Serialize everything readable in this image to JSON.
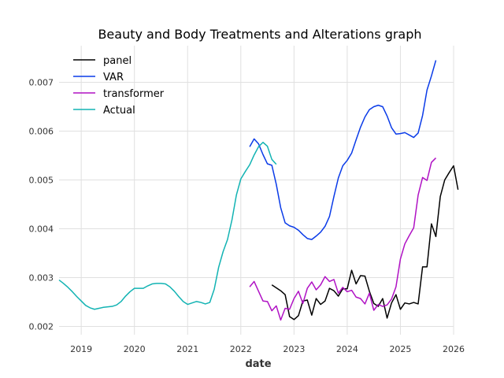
{
  "chart_data": {
    "type": "line",
    "title": "Beauty and Body Treatments and Alterations graph",
    "xlabel": "date",
    "ylabel": "",
    "xlim": [
      "2018-08-01",
      "2026-01-01"
    ],
    "ylim": [
      0.00183,
      0.00775
    ],
    "x_ticks": [
      "2019",
      "2020",
      "2021",
      "2022",
      "2023",
      "2024",
      "2025",
      "2026"
    ],
    "y_ticks": [
      "0.002",
      "0.003",
      "0.004",
      "0.005",
      "0.006",
      "0.007"
    ],
    "grid": true,
    "legend_position": "top-left",
    "series": [
      {
        "name": "panel",
        "color": "#000000",
        "points": [
          [
            "2022-08",
            0.00285
          ],
          [
            "2022-09",
            0.00279
          ],
          [
            "2022-10",
            0.00273
          ],
          [
            "2022-11",
            0.00265
          ],
          [
            "2022-12",
            0.0022
          ],
          [
            "2023-01",
            0.00214
          ],
          [
            "2023-02",
            0.00222
          ],
          [
            "2023-03",
            0.00252
          ],
          [
            "2023-04",
            0.00254
          ],
          [
            "2023-05",
            0.00223
          ],
          [
            "2023-06",
            0.00257
          ],
          [
            "2023-07",
            0.00245
          ],
          [
            "2023-08",
            0.00252
          ],
          [
            "2023-09",
            0.00278
          ],
          [
            "2023-10",
            0.00273
          ],
          [
            "2023-11",
            0.00262
          ],
          [
            "2023-12",
            0.00277
          ],
          [
            "2024-01",
            0.00277
          ],
          [
            "2024-02",
            0.00315
          ],
          [
            "2024-03",
            0.00287
          ],
          [
            "2024-04",
            0.00304
          ],
          [
            "2024-05",
            0.00303
          ],
          [
            "2024-06",
            0.00272
          ],
          [
            "2024-07",
            0.00247
          ],
          [
            "2024-08",
            0.00241
          ],
          [
            "2024-09",
            0.00257
          ],
          [
            "2024-10",
            0.00217
          ],
          [
            "2024-11",
            0.00248
          ],
          [
            "2024-12",
            0.00265
          ],
          [
            "2025-01",
            0.00235
          ],
          [
            "2025-02",
            0.00248
          ],
          [
            "2025-03",
            0.00246
          ],
          [
            "2025-04",
            0.00249
          ],
          [
            "2025-05",
            0.00246
          ],
          [
            "2025-06",
            0.00322
          ],
          [
            "2025-07",
            0.00322
          ],
          [
            "2025-08",
            0.0041
          ],
          [
            "2025-09",
            0.00384
          ],
          [
            "2025-10",
            0.00466
          ],
          [
            "2025-11",
            0.005
          ],
          [
            "2025-12",
            0.00515
          ],
          [
            "2026-01",
            0.00529
          ],
          [
            "2026-02",
            0.0048
          ]
        ]
      },
      {
        "name": "VAR",
        "color": "#0a3be8",
        "points": [
          [
            "2022-03",
            0.00568
          ],
          [
            "2022-04",
            0.00584
          ],
          [
            "2022-05",
            0.00574
          ],
          [
            "2022-06",
            0.00552
          ],
          [
            "2022-07",
            0.00533
          ],
          [
            "2022-08",
            0.0053
          ],
          [
            "2022-09",
            0.00491
          ],
          [
            "2022-10",
            0.00443
          ],
          [
            "2022-11",
            0.00412
          ],
          [
            "2022-12",
            0.00406
          ],
          [
            "2023-01",
            0.00403
          ],
          [
            "2023-02",
            0.00397
          ],
          [
            "2023-03",
            0.00388
          ],
          [
            "2023-04",
            0.0038
          ],
          [
            "2023-05",
            0.00378
          ],
          [
            "2023-06",
            0.00385
          ],
          [
            "2023-07",
            0.00393
          ],
          [
            "2023-08",
            0.00405
          ],
          [
            "2023-09",
            0.00425
          ],
          [
            "2023-10",
            0.00466
          ],
          [
            "2023-11",
            0.00504
          ],
          [
            "2023-12",
            0.00529
          ],
          [
            "2024-01",
            0.0054
          ],
          [
            "2024-02",
            0.00555
          ],
          [
            "2024-03",
            0.00582
          ],
          [
            "2024-04",
            0.00608
          ],
          [
            "2024-05",
            0.00629
          ],
          [
            "2024-06",
            0.00644
          ],
          [
            "2024-07",
            0.0065
          ],
          [
            "2024-08",
            0.00653
          ],
          [
            "2024-09",
            0.0065
          ],
          [
            "2024-10",
            0.00631
          ],
          [
            "2024-11",
            0.00607
          ],
          [
            "2024-12",
            0.00594
          ],
          [
            "2025-01",
            0.00595
          ],
          [
            "2025-02",
            0.00597
          ],
          [
            "2025-03",
            0.00592
          ],
          [
            "2025-04",
            0.00587
          ],
          [
            "2025-05",
            0.00596
          ],
          [
            "2025-06",
            0.00632
          ],
          [
            "2025-07",
            0.00684
          ],
          [
            "2025-08",
            0.00713
          ],
          [
            "2025-09",
            0.00745
          ]
        ]
      },
      {
        "name": "transformer",
        "color": "#b012c4",
        "points": [
          [
            "2022-03",
            0.00281
          ],
          [
            "2022-04",
            0.00292
          ],
          [
            "2022-05",
            0.00272
          ],
          [
            "2022-06",
            0.00252
          ],
          [
            "2022-07",
            0.00251
          ],
          [
            "2022-08",
            0.00232
          ],
          [
            "2022-09",
            0.00242
          ],
          [
            "2022-10",
            0.00213
          ],
          [
            "2022-11",
            0.00237
          ],
          [
            "2022-12",
            0.00235
          ],
          [
            "2023-01",
            0.00257
          ],
          [
            "2023-02",
            0.00272
          ],
          [
            "2023-03",
            0.00247
          ],
          [
            "2023-04",
            0.00278
          ],
          [
            "2023-05",
            0.00291
          ],
          [
            "2023-06",
            0.00275
          ],
          [
            "2023-07",
            0.00285
          ],
          [
            "2023-08",
            0.00302
          ],
          [
            "2023-09",
            0.00292
          ],
          [
            "2023-10",
            0.00296
          ],
          [
            "2023-11",
            0.00268
          ],
          [
            "2023-12",
            0.0028
          ],
          [
            "2024-01",
            0.00271
          ],
          [
            "2024-02",
            0.00274
          ],
          [
            "2024-03",
            0.0026
          ],
          [
            "2024-04",
            0.00257
          ],
          [
            "2024-05",
            0.00246
          ],
          [
            "2024-06",
            0.00268
          ],
          [
            "2024-07",
            0.00233
          ],
          [
            "2024-08",
            0.00245
          ],
          [
            "2024-09",
            0.00241
          ],
          [
            "2024-10",
            0.00244
          ],
          [
            "2024-11",
            0.00256
          ],
          [
            "2024-12",
            0.00281
          ],
          [
            "2025-01",
            0.00338
          ],
          [
            "2025-02",
            0.00369
          ],
          [
            "2025-03",
            0.00386
          ],
          [
            "2025-04",
            0.00402
          ],
          [
            "2025-05",
            0.00469
          ],
          [
            "2025-06",
            0.00505
          ],
          [
            "2025-07",
            0.00499
          ],
          [
            "2025-08",
            0.00536
          ],
          [
            "2025-09",
            0.00545
          ]
        ]
      },
      {
        "name": "Actual",
        "color": "#12b3b3",
        "points": [
          [
            "2018-08",
            0.00295
          ],
          [
            "2018-09",
            0.00288
          ],
          [
            "2018-10",
            0.0028
          ],
          [
            "2018-11",
            0.00271
          ],
          [
            "2018-12",
            0.00261
          ],
          [
            "2019-01",
            0.00252
          ],
          [
            "2019-02",
            0.00243
          ],
          [
            "2019-03",
            0.00238
          ],
          [
            "2019-04",
            0.00235
          ],
          [
            "2019-05",
            0.00237
          ],
          [
            "2019-06",
            0.00239
          ],
          [
            "2019-07",
            0.0024
          ],
          [
            "2019-08",
            0.00241
          ],
          [
            "2019-09",
            0.00244
          ],
          [
            "2019-10",
            0.00251
          ],
          [
            "2019-11",
            0.00262
          ],
          [
            "2019-12",
            0.00271
          ],
          [
            "2020-01",
            0.00278
          ],
          [
            "2020-02",
            0.00278
          ],
          [
            "2020-03",
            0.00278
          ],
          [
            "2020-04",
            0.00283
          ],
          [
            "2020-05",
            0.00287
          ],
          [
            "2020-06",
            0.00288
          ],
          [
            "2020-07",
            0.00288
          ],
          [
            "2020-08",
            0.00287
          ],
          [
            "2020-09",
            0.00281
          ],
          [
            "2020-10",
            0.00272
          ],
          [
            "2020-11",
            0.00261
          ],
          [
            "2020-12",
            0.00251
          ],
          [
            "2021-01",
            0.00245
          ],
          [
            "2021-02",
            0.00248
          ],
          [
            "2021-03",
            0.00251
          ],
          [
            "2021-04",
            0.00249
          ],
          [
            "2021-05",
            0.00246
          ],
          [
            "2021-06",
            0.00249
          ],
          [
            "2021-07",
            0.00276
          ],
          [
            "2021-08",
            0.00321
          ],
          [
            "2021-09",
            0.00353
          ],
          [
            "2021-10",
            0.00378
          ],
          [
            "2021-11",
            0.00418
          ],
          [
            "2021-12",
            0.00469
          ],
          [
            "2022-01",
            0.00502
          ],
          [
            "2022-02",
            0.00517
          ],
          [
            "2022-03",
            0.00531
          ],
          [
            "2022-04",
            0.00551
          ],
          [
            "2022-05",
            0.00568
          ],
          [
            "2022-06",
            0.00577
          ],
          [
            "2022-07",
            0.00569
          ],
          [
            "2022-08",
            0.00542
          ],
          [
            "2022-09",
            0.00532
          ]
        ]
      }
    ]
  }
}
